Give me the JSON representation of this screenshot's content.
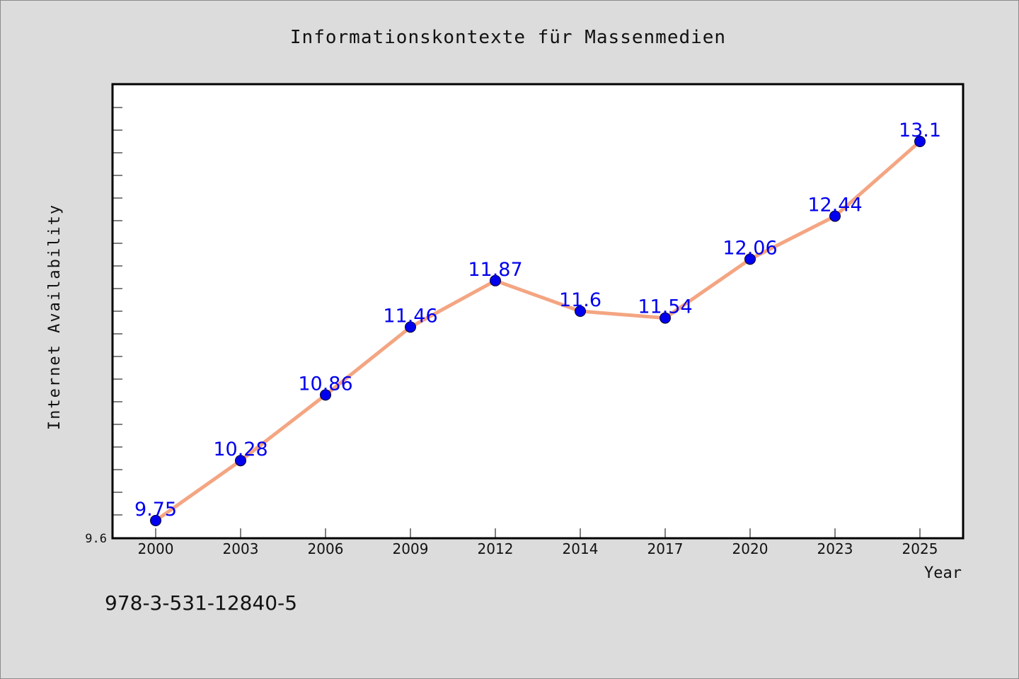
{
  "chart_data": {
    "type": "line",
    "title": "Informationskontexte für Massenmedien",
    "xlabel": "Year",
    "ylabel": "Internet Availability",
    "categories": [
      "2000",
      "2003",
      "2006",
      "2009",
      "2012",
      "2014",
      "2017",
      "2020",
      "2023",
      "2025"
    ],
    "series": [
      {
        "values": [
          9.75,
          10.28,
          10.86,
          11.46,
          11.87,
          11.6,
          11.54,
          12.06,
          12.44,
          13.1
        ],
        "labels": [
          "9.75",
          "10.28",
          "10.86",
          "11.46",
          "11.87",
          "11.6",
          "11.54",
          "12.06",
          "12.44",
          "13.1"
        ]
      }
    ],
    "ylim": [
      9.6,
      13.6
    ],
    "y_tick_label": "9.6",
    "grid": false,
    "colors": {
      "line": "#f4a582",
      "marker": "#0000ee",
      "data_label": "#0000ee",
      "plot_bg": "#ffffff",
      "page_bg": "#dcdcdc"
    }
  },
  "footer": {
    "isbn": "978-3-531-12840-5"
  }
}
